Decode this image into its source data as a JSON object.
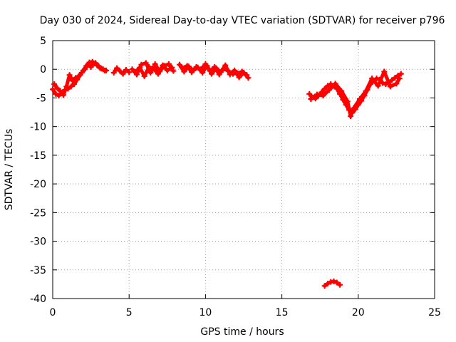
{
  "chart_data": {
    "type": "scatter",
    "title": "Day 030 of 2024, Sidereal Day-to-day VTEC variation (SDTVAR) for receiver p796",
    "xlabel": "GPS time / hours",
    "ylabel": "SDTVAR / TECUs",
    "xlim": [
      0,
      25
    ],
    "ylim": [
      -40,
      5
    ],
    "xticks": [
      0,
      5,
      10,
      15,
      20,
      25
    ],
    "xtick_labels": [
      "0",
      "5",
      "10",
      "15",
      "20",
      "25"
    ],
    "yticks": [
      5,
      0,
      -5,
      -10,
      -15,
      -20,
      -25,
      -30,
      -35,
      -40
    ],
    "ytick_labels": [
      "5",
      "0",
      "-5",
      "-10",
      "-15",
      "-20",
      "-25",
      "-30",
      "-35",
      "-40"
    ],
    "grid": true,
    "marker": "plus",
    "color": "#ff0000",
    "series": [
      {
        "name": "SDTVAR",
        "segments": [
          {
            "x": [
              0.0,
              0.2,
              0.4,
              0.6,
              0.8,
              1.0,
              1.2,
              1.4,
              1.6,
              1.8,
              2.0,
              2.2,
              2.4,
              2.6,
              2.8,
              3.0,
              3.2,
              3.4
            ],
            "y": [
              -3.5,
              -4.3,
              -4.6,
              -4.1,
              -3.6,
              -3.4,
              -3.0,
              -2.6,
              -1.8,
              -1.0,
              -0.2,
              0.6,
              1.2,
              1.3,
              1.1,
              0.6,
              0.1,
              -0.2
            ]
          },
          {
            "x": [
              0.1,
              0.3,
              0.5,
              0.7,
              0.9,
              1.1,
              1.3,
              1.5,
              1.7,
              1.9,
              2.1,
              2.3,
              2.5,
              2.7,
              2.9,
              3.1,
              3.3,
              3.5
            ],
            "y": [
              -2.6,
              -3.3,
              -3.8,
              -4.5,
              -3.0,
              -1.0,
              -2.0,
              -1.5,
              -1.2,
              -0.6,
              0.0,
              0.8,
              0.4,
              1.0,
              0.7,
              0.2,
              0.0,
              -0.2
            ]
          },
          {
            "x": [
              4.0,
              4.2,
              4.4,
              4.6,
              4.8,
              5.0
            ],
            "y": [
              -0.6,
              0.2,
              -0.3,
              -0.8,
              -0.1,
              -0.5
            ]
          },
          {
            "x": [
              5.2,
              5.5,
              5.8,
              6.1,
              6.4,
              6.7,
              7.0,
              7.3,
              7.6,
              7.9
            ],
            "y": [
              0.0,
              -0.9,
              0.8,
              1.1,
              -0.6,
              0.9,
              -0.4,
              0.6,
              0.9,
              -0.3
            ]
          },
          {
            "x": [
              5.4,
              5.7,
              6.0,
              6.3,
              6.6,
              6.9,
              7.2,
              7.5,
              7.8
            ],
            "y": [
              -0.5,
              0.3,
              -1.2,
              0.4,
              0.1,
              -0.8,
              0.7,
              -0.2,
              0.3
            ]
          },
          {
            "x": [
              8.3,
              8.6,
              8.9,
              9.2,
              9.5,
              9.8,
              10.1,
              10.4,
              10.7,
              11.0,
              11.3,
              11.6,
              11.9,
              12.2,
              12.5,
              12.8
            ],
            "y": [
              0.8,
              -0.4,
              0.5,
              -0.2,
              0.3,
              -0.6,
              0.6,
              -0.8,
              0.2,
              -0.5,
              0.7,
              -0.9,
              -0.2,
              -1.4,
              -0.6,
              -1.5
            ]
          },
          {
            "x": [
              8.5,
              8.8,
              9.1,
              9.4,
              9.7,
              10.0,
              10.3,
              10.6,
              10.9,
              11.2,
              11.5,
              11.8,
              12.1,
              12.4,
              12.7
            ],
            "y": [
              0.2,
              0.6,
              -0.5,
              0.4,
              0.0,
              0.9,
              -0.3,
              0.4,
              -0.9,
              0.1,
              -0.3,
              -0.8,
              -0.7,
              -0.4,
              -1.0
            ]
          },
          {
            "x": [
              16.8,
              17.0,
              17.2,
              17.4,
              17.6,
              17.8,
              18.0,
              18.2,
              18.4,
              18.6,
              18.8,
              19.0,
              19.2,
              19.4,
              19.6,
              19.8,
              20.0,
              20.2,
              20.4,
              20.6,
              20.8,
              21.0,
              21.2,
              21.4,
              21.6,
              21.8,
              22.0,
              22.2,
              22.4,
              22.6,
              22.8
            ],
            "y": [
              -4.3,
              -4.9,
              -5.1,
              -4.6,
              -4.0,
              -3.4,
              -2.9,
              -2.6,
              -2.9,
              -3.4,
              -4.3,
              -5.3,
              -6.2,
              -7.1,
              -7.6,
              -7.0,
              -6.2,
              -5.5,
              -4.6,
              -3.6,
              -2.6,
              -2.0,
              -1.6,
              -1.8,
              -2.4,
              -2.6,
              -2.3,
              -1.9,
              -1.5,
              -1.1,
              -0.8
            ]
          },
          {
            "x": [
              16.9,
              17.3,
              17.7,
              18.1,
              18.5,
              18.9,
              19.3,
              19.5,
              19.7,
              20.1,
              20.5,
              20.9,
              21.3,
              21.7,
              22.1,
              22.5,
              22.7
            ],
            "y": [
              -5.2,
              -4.4,
              -4.6,
              -3.6,
              -2.5,
              -3.8,
              -5.6,
              -8.2,
              -6.8,
              -5.2,
              -3.8,
              -1.6,
              -2.9,
              -0.4,
              -3.0,
              -2.5,
              -1.6
            ]
          },
          {
            "x": [
              17.8,
              18.0,
              18.2,
              18.4,
              18.6,
              18.8
            ],
            "y": [
              -37.8,
              -37.4,
              -37.1,
              -37.0,
              -37.2,
              -37.6
            ]
          }
        ]
      }
    ]
  }
}
